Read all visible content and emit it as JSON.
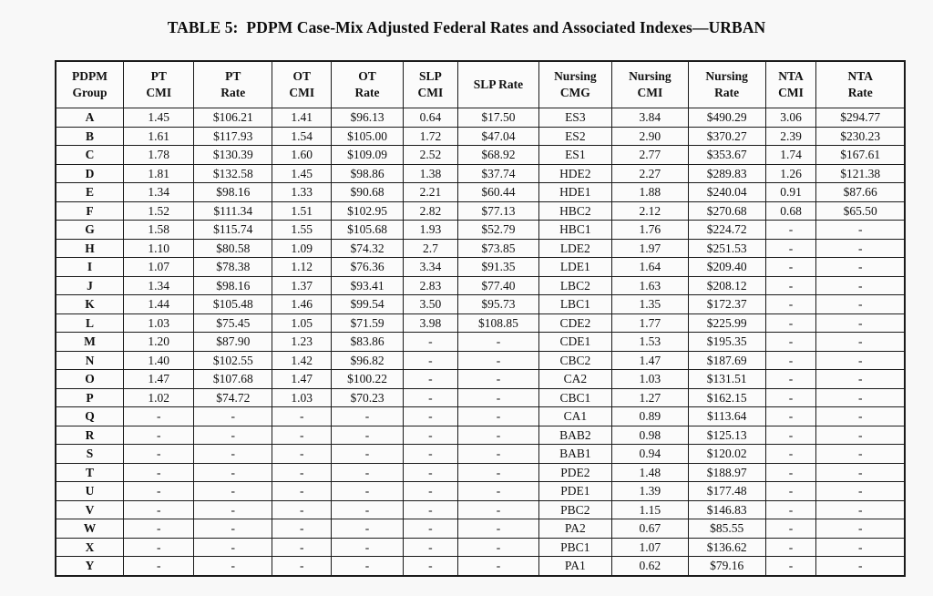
{
  "title": "TABLE 5:  PDPM Case-Mix Adjusted Federal Rates and Associated Indexes—URBAN",
  "table": {
    "headers": [
      [
        "PDPM",
        "Group"
      ],
      [
        "PT",
        "CMI"
      ],
      [
        "PT",
        "Rate"
      ],
      [
        "OT",
        "CMI"
      ],
      [
        "OT",
        "Rate"
      ],
      [
        "SLP",
        "CMI"
      ],
      [
        "SLP Rate"
      ],
      [
        "Nursing",
        "CMG"
      ],
      [
        "Nursing",
        "CMI"
      ],
      [
        "Nursing",
        "Rate"
      ],
      [
        "NTA",
        "CMI"
      ],
      [
        "NTA",
        "Rate"
      ]
    ],
    "header_keys": [
      "pdpm-group",
      "pt-cmi",
      "pt-rate",
      "ot-cmi",
      "ot-rate",
      "slp-cmi",
      "slp-rate",
      "nursing-cmg",
      "nursing-cmi",
      "nursing-rate",
      "nta-cmi",
      "nta-rate"
    ],
    "rows": [
      [
        "A",
        "1.45",
        "$106.21",
        "1.41",
        "$96.13",
        "0.64",
        "$17.50",
        "ES3",
        "3.84",
        "$490.29",
        "3.06",
        "$294.77"
      ],
      [
        "B",
        "1.61",
        "$117.93",
        "1.54",
        "$105.00",
        "1.72",
        "$47.04",
        "ES2",
        "2.90",
        "$370.27",
        "2.39",
        "$230.23"
      ],
      [
        "C",
        "1.78",
        "$130.39",
        "1.60",
        "$109.09",
        "2.52",
        "$68.92",
        "ES1",
        "2.77",
        "$353.67",
        "1.74",
        "$167.61"
      ],
      [
        "D",
        "1.81",
        "$132.58",
        "1.45",
        "$98.86",
        "1.38",
        "$37.74",
        "HDE2",
        "2.27",
        "$289.83",
        "1.26",
        "$121.38"
      ],
      [
        "E",
        "1.34",
        "$98.16",
        "1.33",
        "$90.68",
        "2.21",
        "$60.44",
        "HDE1",
        "1.88",
        "$240.04",
        "0.91",
        "$87.66"
      ],
      [
        "F",
        "1.52",
        "$111.34",
        "1.51",
        "$102.95",
        "2.82",
        "$77.13",
        "HBC2",
        "2.12",
        "$270.68",
        "0.68",
        "$65.50"
      ],
      [
        "G",
        "1.58",
        "$115.74",
        "1.55",
        "$105.68",
        "1.93",
        "$52.79",
        "HBC1",
        "1.76",
        "$224.72",
        "-",
        "-"
      ],
      [
        "H",
        "1.10",
        "$80.58",
        "1.09",
        "$74.32",
        "2.7",
        "$73.85",
        "LDE2",
        "1.97",
        "$251.53",
        "-",
        "-"
      ],
      [
        "I",
        "1.07",
        "$78.38",
        "1.12",
        "$76.36",
        "3.34",
        "$91.35",
        "LDE1",
        "1.64",
        "$209.40",
        "-",
        "-"
      ],
      [
        "J",
        "1.34",
        "$98.16",
        "1.37",
        "$93.41",
        "2.83",
        "$77.40",
        "LBC2",
        "1.63",
        "$208.12",
        "-",
        "-"
      ],
      [
        "K",
        "1.44",
        "$105.48",
        "1.46",
        "$99.54",
        "3.50",
        "$95.73",
        "LBC1",
        "1.35",
        "$172.37",
        "-",
        "-"
      ],
      [
        "L",
        "1.03",
        "$75.45",
        "1.05",
        "$71.59",
        "3.98",
        "$108.85",
        "CDE2",
        "1.77",
        "$225.99",
        "-",
        "-"
      ],
      [
        "M",
        "1.20",
        "$87.90",
        "1.23",
        "$83.86",
        "-",
        "-",
        "CDE1",
        "1.53",
        "$195.35",
        "-",
        "-"
      ],
      [
        "N",
        "1.40",
        "$102.55",
        "1.42",
        "$96.82",
        "-",
        "-",
        "CBC2",
        "1.47",
        "$187.69",
        "-",
        "-"
      ],
      [
        "O",
        "1.47",
        "$107.68",
        "1.47",
        "$100.22",
        "-",
        "-",
        "CA2",
        "1.03",
        "$131.51",
        "-",
        "-"
      ],
      [
        "P",
        "1.02",
        "$74.72",
        "1.03",
        "$70.23",
        "-",
        "-",
        "CBC1",
        "1.27",
        "$162.15",
        "-",
        "-"
      ],
      [
        "Q",
        "-",
        "-",
        "-",
        "-",
        "-",
        "-",
        "CA1",
        "0.89",
        "$113.64",
        "-",
        "-"
      ],
      [
        "R",
        "-",
        "-",
        "-",
        "-",
        "-",
        "-",
        "BAB2",
        "0.98",
        "$125.13",
        "-",
        "-"
      ],
      [
        "S",
        "-",
        "-",
        "-",
        "-",
        "-",
        "-",
        "BAB1",
        "0.94",
        "$120.02",
        "-",
        "-"
      ],
      [
        "T",
        "-",
        "-",
        "-",
        "-",
        "-",
        "-",
        "PDE2",
        "1.48",
        "$188.97",
        "-",
        "-"
      ],
      [
        "U",
        "-",
        "-",
        "-",
        "-",
        "-",
        "-",
        "PDE1",
        "1.39",
        "$177.48",
        "-",
        "-"
      ],
      [
        "V",
        "-",
        "-",
        "-",
        "-",
        "-",
        "-",
        "PBC2",
        "1.15",
        "$146.83",
        "-",
        "-"
      ],
      [
        "W",
        "-",
        "-",
        "-",
        "-",
        "-",
        "-",
        "PA2",
        "0.67",
        "$85.55",
        "-",
        "-"
      ],
      [
        "X",
        "-",
        "-",
        "-",
        "-",
        "-",
        "-",
        "PBC1",
        "1.07",
        "$136.62",
        "-",
        "-"
      ],
      [
        "Y",
        "-",
        "-",
        "-",
        "-",
        "-",
        "-",
        "PA1",
        "0.62",
        "$79.16",
        "-",
        "-"
      ]
    ]
  }
}
